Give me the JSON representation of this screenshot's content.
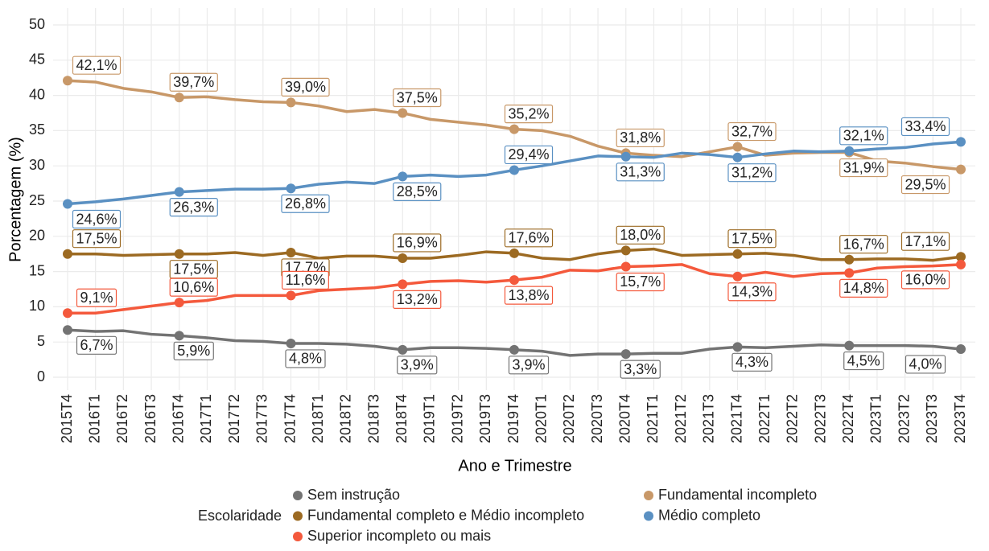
{
  "chart_data": {
    "type": "line",
    "x_label": "Ano e Trimestre",
    "y_label": "Porcentagem (%)",
    "legend_title": "Escolaridade",
    "categories": [
      "2015T4",
      "2016T1",
      "2016T2",
      "2016T3",
      "2016T4",
      "2017T1",
      "2017T2",
      "2017T3",
      "2017T4",
      "2018T1",
      "2018T2",
      "2018T3",
      "2018T4",
      "2019T1",
      "2019T2",
      "2019T3",
      "2019T4",
      "2020T1",
      "2020T2",
      "2020T3",
      "2020T4",
      "2021T1",
      "2021T2",
      "2021T3",
      "2021T4",
      "2022T1",
      "2022T2",
      "2022T3",
      "2022T4",
      "2023T1",
      "2023T2",
      "2023T3",
      "2023T4"
    ],
    "ylim": [
      0,
      50
    ],
    "yticks": [
      0,
      5,
      10,
      15,
      20,
      25,
      30,
      35,
      40,
      45,
      50
    ],
    "grid": true,
    "legend": "bottom",
    "series": [
      {
        "name": "Sem instrução",
        "color": "#737373",
        "values": [
          6.7,
          6.5,
          6.6,
          6.1,
          5.9,
          5.6,
          5.2,
          5.1,
          4.8,
          4.8,
          4.7,
          4.4,
          3.9,
          4.2,
          4.2,
          4.1,
          3.9,
          3.7,
          3.1,
          3.3,
          3.3,
          3.4,
          3.4,
          4.0,
          4.3,
          4.2,
          4.4,
          4.6,
          4.5,
          4.5,
          4.5,
          4.4,
          4.0
        ],
        "value_labels": [
          "6,7%",
          null,
          null,
          null,
          "5,9%",
          null,
          null,
          null,
          "4,8%",
          null,
          null,
          null,
          "3,9%",
          null,
          null,
          null,
          "3,9%",
          null,
          null,
          null,
          "3,3%",
          null,
          null,
          null,
          "4,3%",
          null,
          null,
          null,
          "4,5%",
          null,
          null,
          null,
          "4,0%"
        ]
      },
      {
        "name": "Fundamental incompleto",
        "color": "#c89868",
        "values": [
          42.1,
          41.9,
          41.0,
          40.5,
          39.7,
          39.8,
          39.4,
          39.1,
          39.0,
          38.5,
          37.7,
          38.0,
          37.5,
          36.6,
          36.2,
          35.8,
          35.2,
          35.0,
          34.2,
          32.8,
          31.8,
          31.5,
          31.3,
          32.0,
          32.7,
          31.5,
          31.8,
          31.9,
          31.9,
          30.7,
          30.4,
          29.9,
          29.5
        ],
        "value_labels": [
          "42,1%",
          null,
          null,
          null,
          "39,7%",
          null,
          null,
          null,
          "39,0%",
          null,
          null,
          null,
          "37,5%",
          null,
          null,
          null,
          "35,2%",
          null,
          null,
          null,
          "31,8%",
          null,
          null,
          null,
          "32,7%",
          null,
          null,
          null,
          "31,9%",
          null,
          null,
          null,
          "29,5%"
        ]
      },
      {
        "name": "Fundamental completo e Médio incompleto",
        "color": "#9c6a22",
        "values": [
          17.5,
          17.5,
          17.3,
          17.4,
          17.5,
          17.5,
          17.7,
          17.3,
          17.7,
          16.9,
          17.2,
          17.2,
          16.9,
          16.9,
          17.3,
          17.8,
          17.6,
          16.9,
          16.7,
          17.5,
          18.0,
          18.2,
          17.3,
          17.4,
          17.5,
          17.6,
          17.3,
          16.7,
          16.7,
          16.8,
          16.8,
          16.6,
          17.1
        ],
        "value_labels": [
          "17,5%",
          null,
          null,
          null,
          "17,5%",
          null,
          null,
          null,
          "17,7%",
          null,
          null,
          null,
          "16,9%",
          null,
          null,
          null,
          "17,6%",
          null,
          null,
          null,
          "18,0%",
          null,
          null,
          null,
          "17,5%",
          null,
          null,
          null,
          "16,7%",
          null,
          null,
          null,
          "17,1%"
        ]
      },
      {
        "name": "Médio completo",
        "color": "#5a90c2",
        "values": [
          24.6,
          24.9,
          25.3,
          25.8,
          26.3,
          26.5,
          26.7,
          26.7,
          26.8,
          27.4,
          27.7,
          27.5,
          28.5,
          28.7,
          28.5,
          28.7,
          29.4,
          30.0,
          30.7,
          31.4,
          31.3,
          31.2,
          31.8,
          31.6,
          31.2,
          31.7,
          32.1,
          32.0,
          32.1,
          32.4,
          32.6,
          33.1,
          33.4
        ],
        "value_labels": [
          "24,6%",
          null,
          null,
          null,
          "26,3%",
          null,
          null,
          null,
          "26,8%",
          null,
          null,
          null,
          "28,5%",
          null,
          null,
          null,
          "29,4%",
          null,
          null,
          null,
          "31,3%",
          null,
          null,
          null,
          "31,2%",
          null,
          null,
          null,
          "32,1%",
          null,
          null,
          null,
          "33,4%"
        ]
      },
      {
        "name": "Superior incompleto ou mais",
        "color": "#f4593c",
        "values": [
          9.1,
          9.1,
          9.6,
          10.1,
          10.6,
          10.9,
          11.6,
          11.6,
          11.6,
          12.3,
          12.5,
          12.7,
          13.2,
          13.6,
          13.7,
          13.5,
          13.8,
          14.2,
          15.2,
          15.1,
          15.7,
          15.8,
          16.0,
          14.7,
          14.3,
          14.9,
          14.3,
          14.7,
          14.8,
          15.5,
          15.7,
          15.8,
          16.0
        ],
        "value_labels": [
          "9,1%",
          null,
          null,
          null,
          "10,6%",
          null,
          null,
          null,
          "11,6%",
          null,
          null,
          null,
          "13,2%",
          null,
          null,
          null,
          "13,8%",
          null,
          null,
          null,
          "15,7%",
          null,
          null,
          null,
          "14,3%",
          null,
          null,
          null,
          "14,8%",
          null,
          null,
          null,
          "16,0%"
        ]
      }
    ]
  }
}
